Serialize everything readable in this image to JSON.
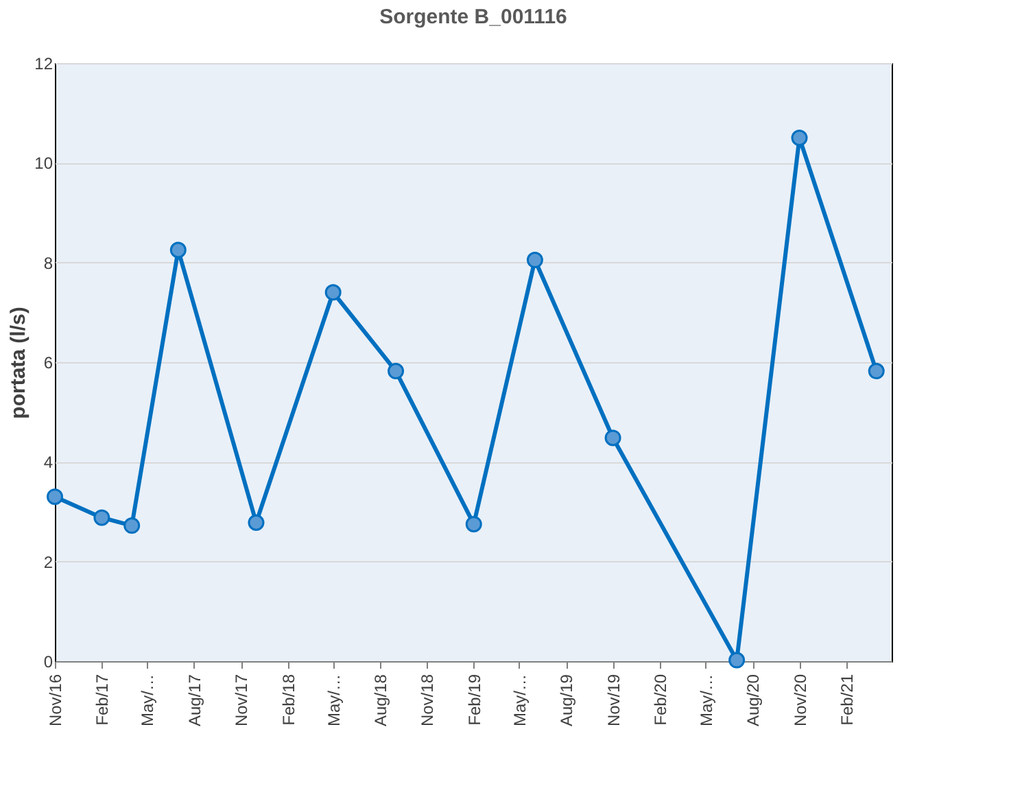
{
  "chart_data": {
    "type": "line",
    "title": "Sorgente B_001116",
    "ylabel": "portata (l/s)",
    "x": [
      "2016-11",
      "2017-02",
      "2017-04",
      "2017-07",
      "2017-12",
      "2018-05",
      "2018-09",
      "2019-02",
      "2019-06",
      "2019-11",
      "2020-07",
      "2020-11",
      "2021-04"
    ],
    "series": [
      {
        "color": "#0070c0",
        "values": [
          3.3,
          2.88,
          2.72,
          8.25,
          2.78,
          7.4,
          5.82,
          2.75,
          8.05,
          4.48,
          0.02,
          10.5,
          5.82
        ]
      }
    ],
    "marker": "circle",
    "line_style": "solid",
    "grid": "y",
    "ylim": [
      0,
      12
    ],
    "yticks": [
      0,
      2,
      4,
      6,
      8,
      10,
      12
    ],
    "xlim": [
      "2016-11",
      "2021-05"
    ],
    "xticks": [
      {
        "value": "2016-11",
        "label": "Nov/16"
      },
      {
        "value": "2017-02",
        "label": "Feb/17"
      },
      {
        "value": "2017-05",
        "label": "May/…"
      },
      {
        "value": "2017-08",
        "label": "Aug/17"
      },
      {
        "value": "2017-11",
        "label": "Nov/17"
      },
      {
        "value": "2018-02",
        "label": "Feb/18"
      },
      {
        "value": "2018-05",
        "label": "May/…"
      },
      {
        "value": "2018-08",
        "label": "Aug/18"
      },
      {
        "value": "2018-11",
        "label": "Nov/18"
      },
      {
        "value": "2019-02",
        "label": "Feb/19"
      },
      {
        "value": "2019-05",
        "label": "May/…"
      },
      {
        "value": "2019-08",
        "label": "Aug/19"
      },
      {
        "value": "2019-11",
        "label": "Nov/19"
      },
      {
        "value": "2020-02",
        "label": "Feb/20"
      },
      {
        "value": "2020-05",
        "label": "May/…"
      },
      {
        "value": "2020-08",
        "label": "Aug/20"
      },
      {
        "value": "2020-11",
        "label": "Nov/20"
      },
      {
        "value": "2021-02",
        "label": "Feb/21"
      }
    ]
  }
}
